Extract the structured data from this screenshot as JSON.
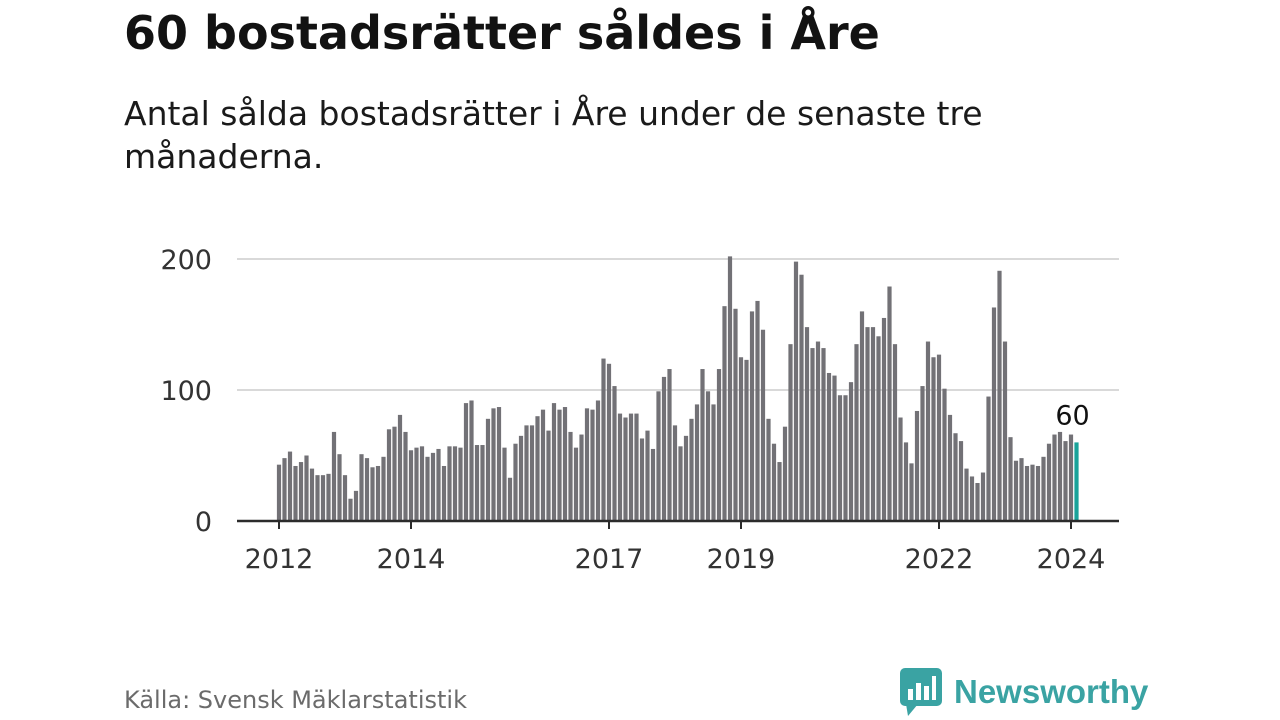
{
  "header": {
    "title": "60 bostadsrätter såldes i Åre",
    "subtitle": "Antal sålda bostadsrätter i Åre under de senaste tre månaderna."
  },
  "footer": {
    "source": "Källa: Svensk Mäklarstatistik",
    "brand": "Newsworthy"
  },
  "colors": {
    "bar": "#727176",
    "highlight": "#1aa39a",
    "grid": "#d9d9d9",
    "axis": "#2b2b2b",
    "brand": "#3aa3a3"
  },
  "chart_data": {
    "type": "bar",
    "title": "60 bostadsrätter såldes i Åre",
    "xlabel": "",
    "ylabel": "",
    "ylim": [
      0,
      200
    ],
    "yticks": [
      0,
      100,
      200
    ],
    "grid": true,
    "x_start": "2012-01",
    "x_tick_labels": [
      {
        "label": "2012",
        "index": 0
      },
      {
        "label": "2014",
        "index": 24
      },
      {
        "label": "2017",
        "index": 60
      },
      {
        "label": "2019",
        "index": 84
      },
      {
        "label": "2022",
        "index": 120
      },
      {
        "label": "2024",
        "index": 144
      }
    ],
    "values": [
      43,
      48,
      53,
      42,
      45,
      50,
      40,
      35,
      35,
      36,
      68,
      51,
      35,
      17,
      23,
      51,
      48,
      41,
      42,
      49,
      70,
      72,
      81,
      68,
      54,
      56,
      57,
      49,
      52,
      55,
      42,
      57,
      57,
      56,
      90,
      92,
      58,
      58,
      78,
      86,
      87,
      56,
      33,
      59,
      65,
      73,
      73,
      80,
      85,
      69,
      90,
      85,
      87,
      68,
      56,
      66,
      86,
      85,
      92,
      124,
      120,
      103,
      82,
      79,
      82,
      82,
      63,
      69,
      55,
      99,
      110,
      116,
      73,
      57,
      65,
      78,
      89,
      116,
      99,
      89,
      116,
      164,
      202,
      162,
      125,
      123,
      160,
      168,
      146,
      78,
      59,
      45,
      72,
      135,
      198,
      188,
      148,
      132,
      137,
      132,
      113,
      111,
      96,
      96,
      106,
      135,
      160,
      148,
      148,
      141,
      155,
      179,
      135,
      79,
      60,
      44,
      84,
      103,
      137,
      125,
      127,
      101,
      81,
      67,
      61,
      40,
      34,
      29,
      37,
      95,
      163,
      191,
      137,
      64,
      46,
      48,
      42,
      43,
      42,
      49,
      59,
      66,
      68,
      61,
      66,
      60
    ],
    "highlight_index": 145,
    "annotations": [
      {
        "index": 145,
        "text": "60"
      }
    ]
  }
}
